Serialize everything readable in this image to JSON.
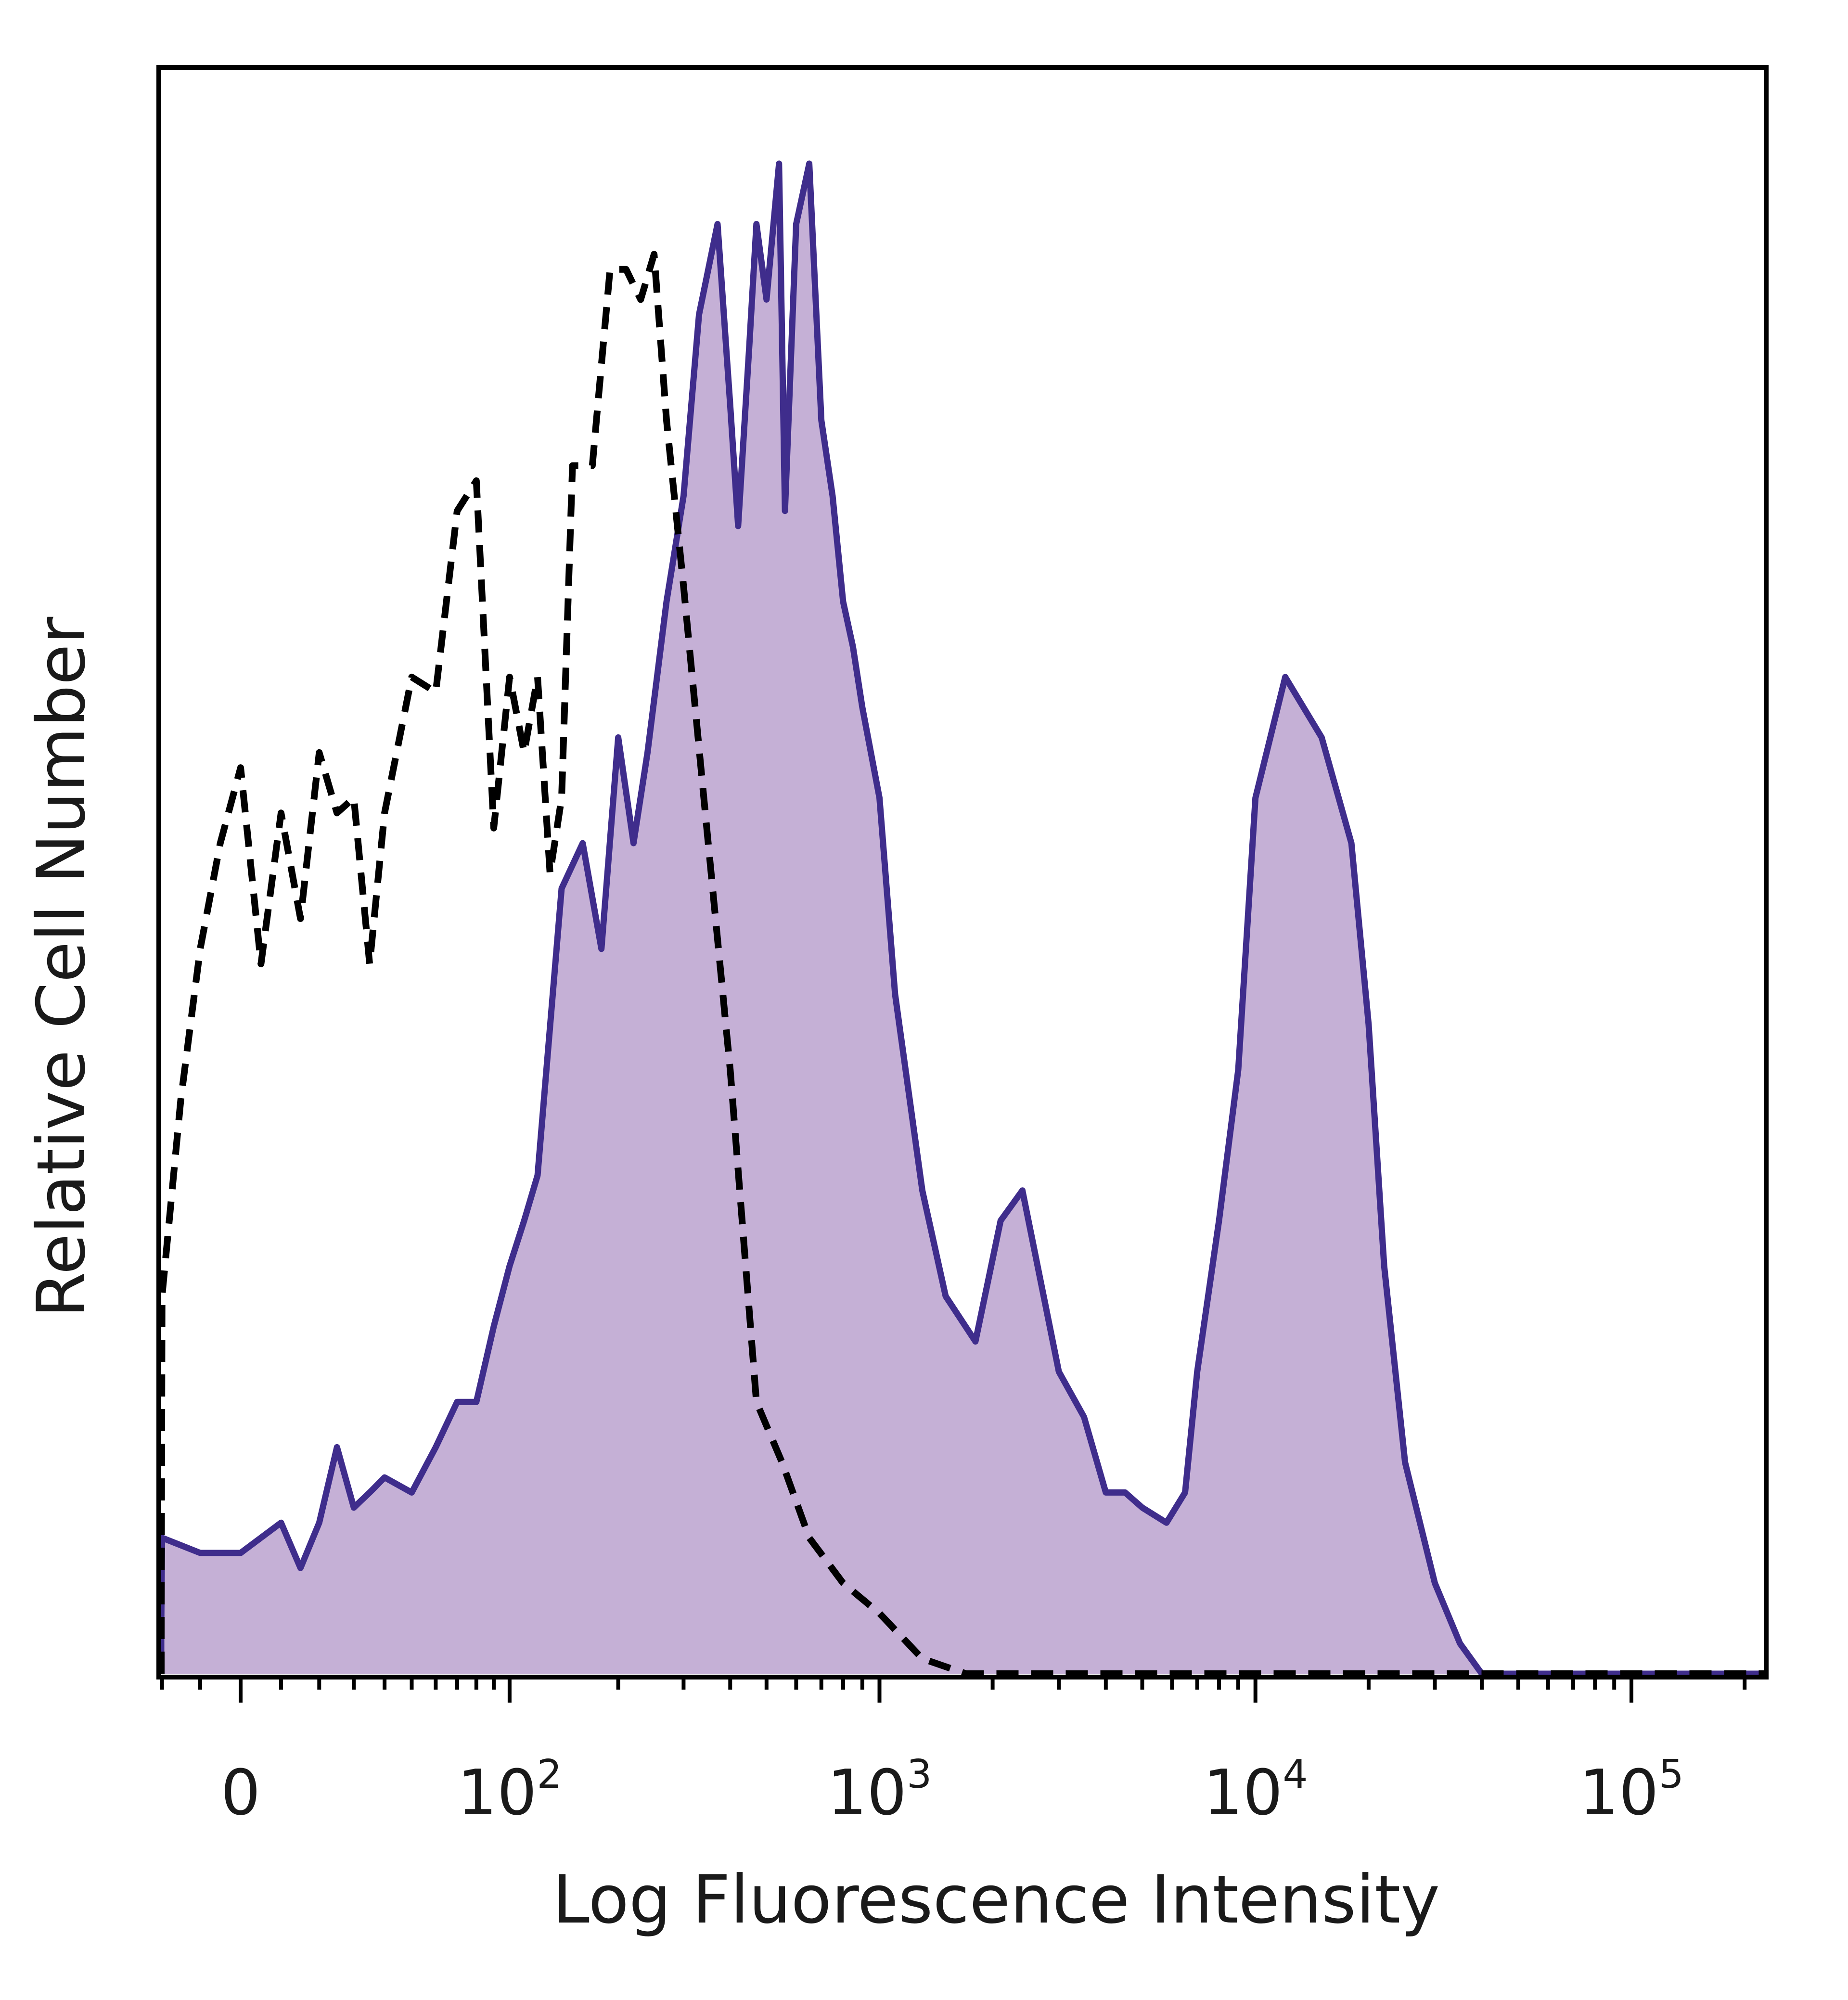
{
  "chart_data": {
    "type": "area",
    "title": "",
    "xlabel": "Log Fluorescence Intensity",
    "ylabel": "Relative Cell Number",
    "x_scale": "biexponential (log with linear region near 0)",
    "x_ticks": [
      {
        "value": 0,
        "base": "0",
        "exponent": ""
      },
      {
        "value": 100,
        "base": "10",
        "exponent": "2"
      },
      {
        "value": 1000,
        "base": "10",
        "exponent": "3"
      },
      {
        "value": 10000,
        "base": "10",
        "exponent": "4"
      },
      {
        "value": 100000,
        "base": "10",
        "exponent": "5"
      }
    ],
    "xlim": [
      -40,
      250000
    ],
    "ylim": [
      0,
      100
    ],
    "grid": false,
    "legend": "none",
    "series": [
      {
        "style": "dashed",
        "color": "#000000",
        "x": [
          -40,
          -30,
          -20,
          -15,
          -10,
          -5,
          0,
          5,
          10,
          15,
          20,
          25,
          30,
          35,
          40,
          50,
          60,
          70,
          80,
          90,
          100,
          110,
          120,
          130,
          140,
          150,
          170,
          190,
          210,
          230,
          250,
          270,
          300,
          340,
          400,
          470,
          550,
          650,
          800,
          1000,
          1300,
          1700,
          2200,
          3000,
          5000,
          10000,
          20000,
          50000,
          100000,
          250000
        ],
        "y": [
          0,
          2,
          25,
          38,
          48,
          55,
          60,
          47,
          57,
          50,
          61,
          57,
          58,
          47,
          57,
          66,
          65,
          77,
          79,
          56,
          66,
          61,
          66,
          53,
          58,
          80,
          80,
          93,
          93,
          91,
          94,
          83,
          72,
          58,
          40,
          18,
          14,
          9,
          6,
          4,
          1,
          0,
          0,
          0,
          0,
          0,
          0,
          0,
          0,
          0
        ]
      },
      {
        "style": "filled",
        "color": "#3f2d8c",
        "fill": "#c5b0d6",
        "x": [
          -40,
          -30,
          -20,
          -10,
          0,
          10,
          15,
          20,
          25,
          30,
          35,
          40,
          50,
          60,
          70,
          80,
          90,
          100,
          110,
          120,
          140,
          160,
          180,
          200,
          220,
          240,
          270,
          300,
          330,
          370,
          400,
          420,
          450,
          470,
          500,
          540,
          560,
          600,
          650,
          700,
          750,
          800,
          850,
          900,
          1000,
          1100,
          1300,
          1500,
          1800,
          2100,
          2400,
          3000,
          3500,
          4000,
          4500,
          5000,
          5800,
          6500,
          7000,
          8000,
          9000,
          10000,
          12000,
          15000,
          18000,
          20000,
          22000,
          25000,
          30000,
          35000,
          40000,
          50000,
          70000,
          100000,
          250000
        ],
        "y": [
          0,
          3,
          9,
          8,
          8,
          10,
          7,
          10,
          15,
          11,
          12,
          13,
          12,
          15,
          18,
          18,
          23,
          27,
          30,
          33,
          52,
          55,
          48,
          62,
          55,
          61,
          71,
          78,
          90,
          96,
          84,
          76,
          88,
          96,
          91,
          100,
          77,
          96,
          100,
          83,
          78,
          71,
          68,
          64,
          58,
          45,
          32,
          25,
          22,
          30,
          32,
          20,
          17,
          12,
          12,
          11,
          10,
          12,
          20,
          30,
          40,
          58,
          66,
          62,
          55,
          43,
          27,
          14,
          6,
          2,
          0,
          0,
          0,
          0,
          0
        ]
      }
    ]
  }
}
